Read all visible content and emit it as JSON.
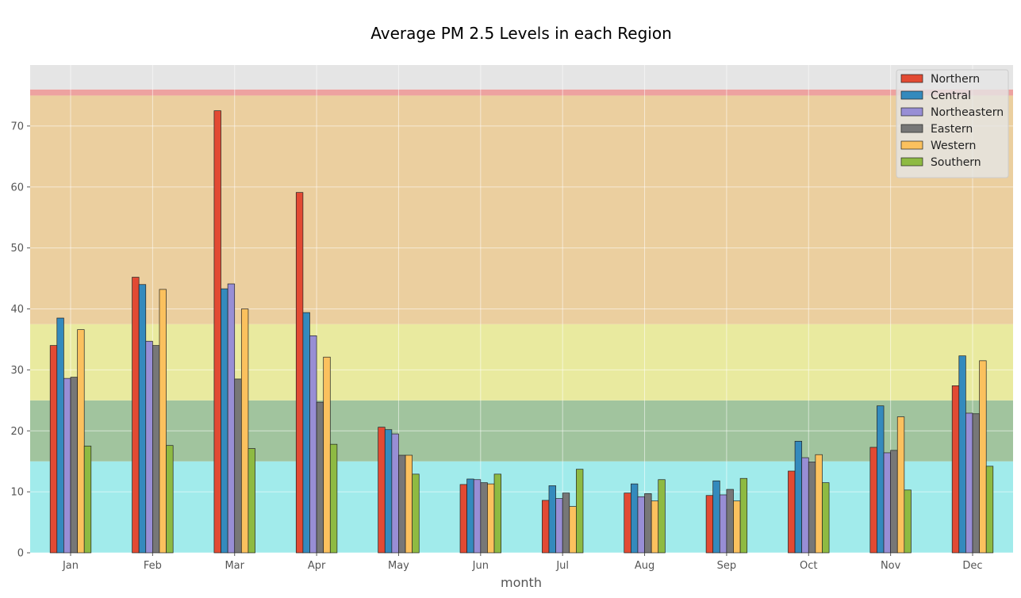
{
  "chart_data": {
    "type": "bar",
    "title": "Average PM 2.5 Levels in each Region",
    "xlabel": "month",
    "ylabel": "",
    "ylim": [
      0,
      80
    ],
    "yticks": [
      0,
      10,
      20,
      30,
      40,
      50,
      60,
      70
    ],
    "grid": true,
    "legend_position": "top-right",
    "categories": [
      "Jan",
      "Feb",
      "Mar",
      "Apr",
      "May",
      "Jun",
      "Jul",
      "Aug",
      "Sep",
      "Oct",
      "Nov",
      "Dec"
    ],
    "series": [
      {
        "name": "Northern",
        "color": "#e24a33",
        "values": [
          34.0,
          45.2,
          72.5,
          59.1,
          20.6,
          11.2,
          8.6,
          9.8,
          9.4,
          13.4,
          17.3,
          27.4
        ]
      },
      {
        "name": "Central",
        "color": "#348abd",
        "values": [
          38.5,
          44.0,
          43.3,
          39.4,
          20.2,
          12.1,
          11.0,
          11.3,
          11.8,
          18.3,
          24.1,
          32.3
        ]
      },
      {
        "name": "Northeastern",
        "color": "#988ed5",
        "values": [
          28.6,
          34.7,
          44.1,
          35.6,
          19.5,
          12.0,
          8.9,
          9.2,
          9.5,
          15.6,
          16.4,
          22.9
        ]
      },
      {
        "name": "Eastern",
        "color": "#777777",
        "values": [
          28.8,
          34.0,
          28.5,
          24.7,
          16.0,
          11.5,
          9.8,
          9.7,
          10.4,
          14.9,
          16.8,
          22.8
        ]
      },
      {
        "name": "Western",
        "color": "#fbc15e",
        "values": [
          36.6,
          43.2,
          40.0,
          32.1,
          16.0,
          11.3,
          7.6,
          8.5,
          8.5,
          16.1,
          22.3,
          31.5
        ]
      },
      {
        "name": "Southern",
        "color": "#8eba42",
        "values": [
          17.5,
          17.6,
          17.1,
          17.8,
          12.9,
          12.9,
          13.7,
          12.0,
          12.2,
          11.5,
          10.3,
          14.2
        ]
      }
    ],
    "background_bands": [
      {
        "from": 0,
        "to": 15,
        "color": "#a1ebeb"
      },
      {
        "from": 15,
        "to": 25,
        "color": "#a1c49e"
      },
      {
        "from": 25,
        "to": 37.5,
        "color": "#e9ea9f"
      },
      {
        "from": 37.5,
        "to": 75,
        "color": "#ebcf9f"
      },
      {
        "from": 75,
        "to": 76,
        "color": "#eda2a0"
      },
      {
        "from": 76,
        "to": 80,
        "color": "#e5e5e5"
      }
    ]
  }
}
